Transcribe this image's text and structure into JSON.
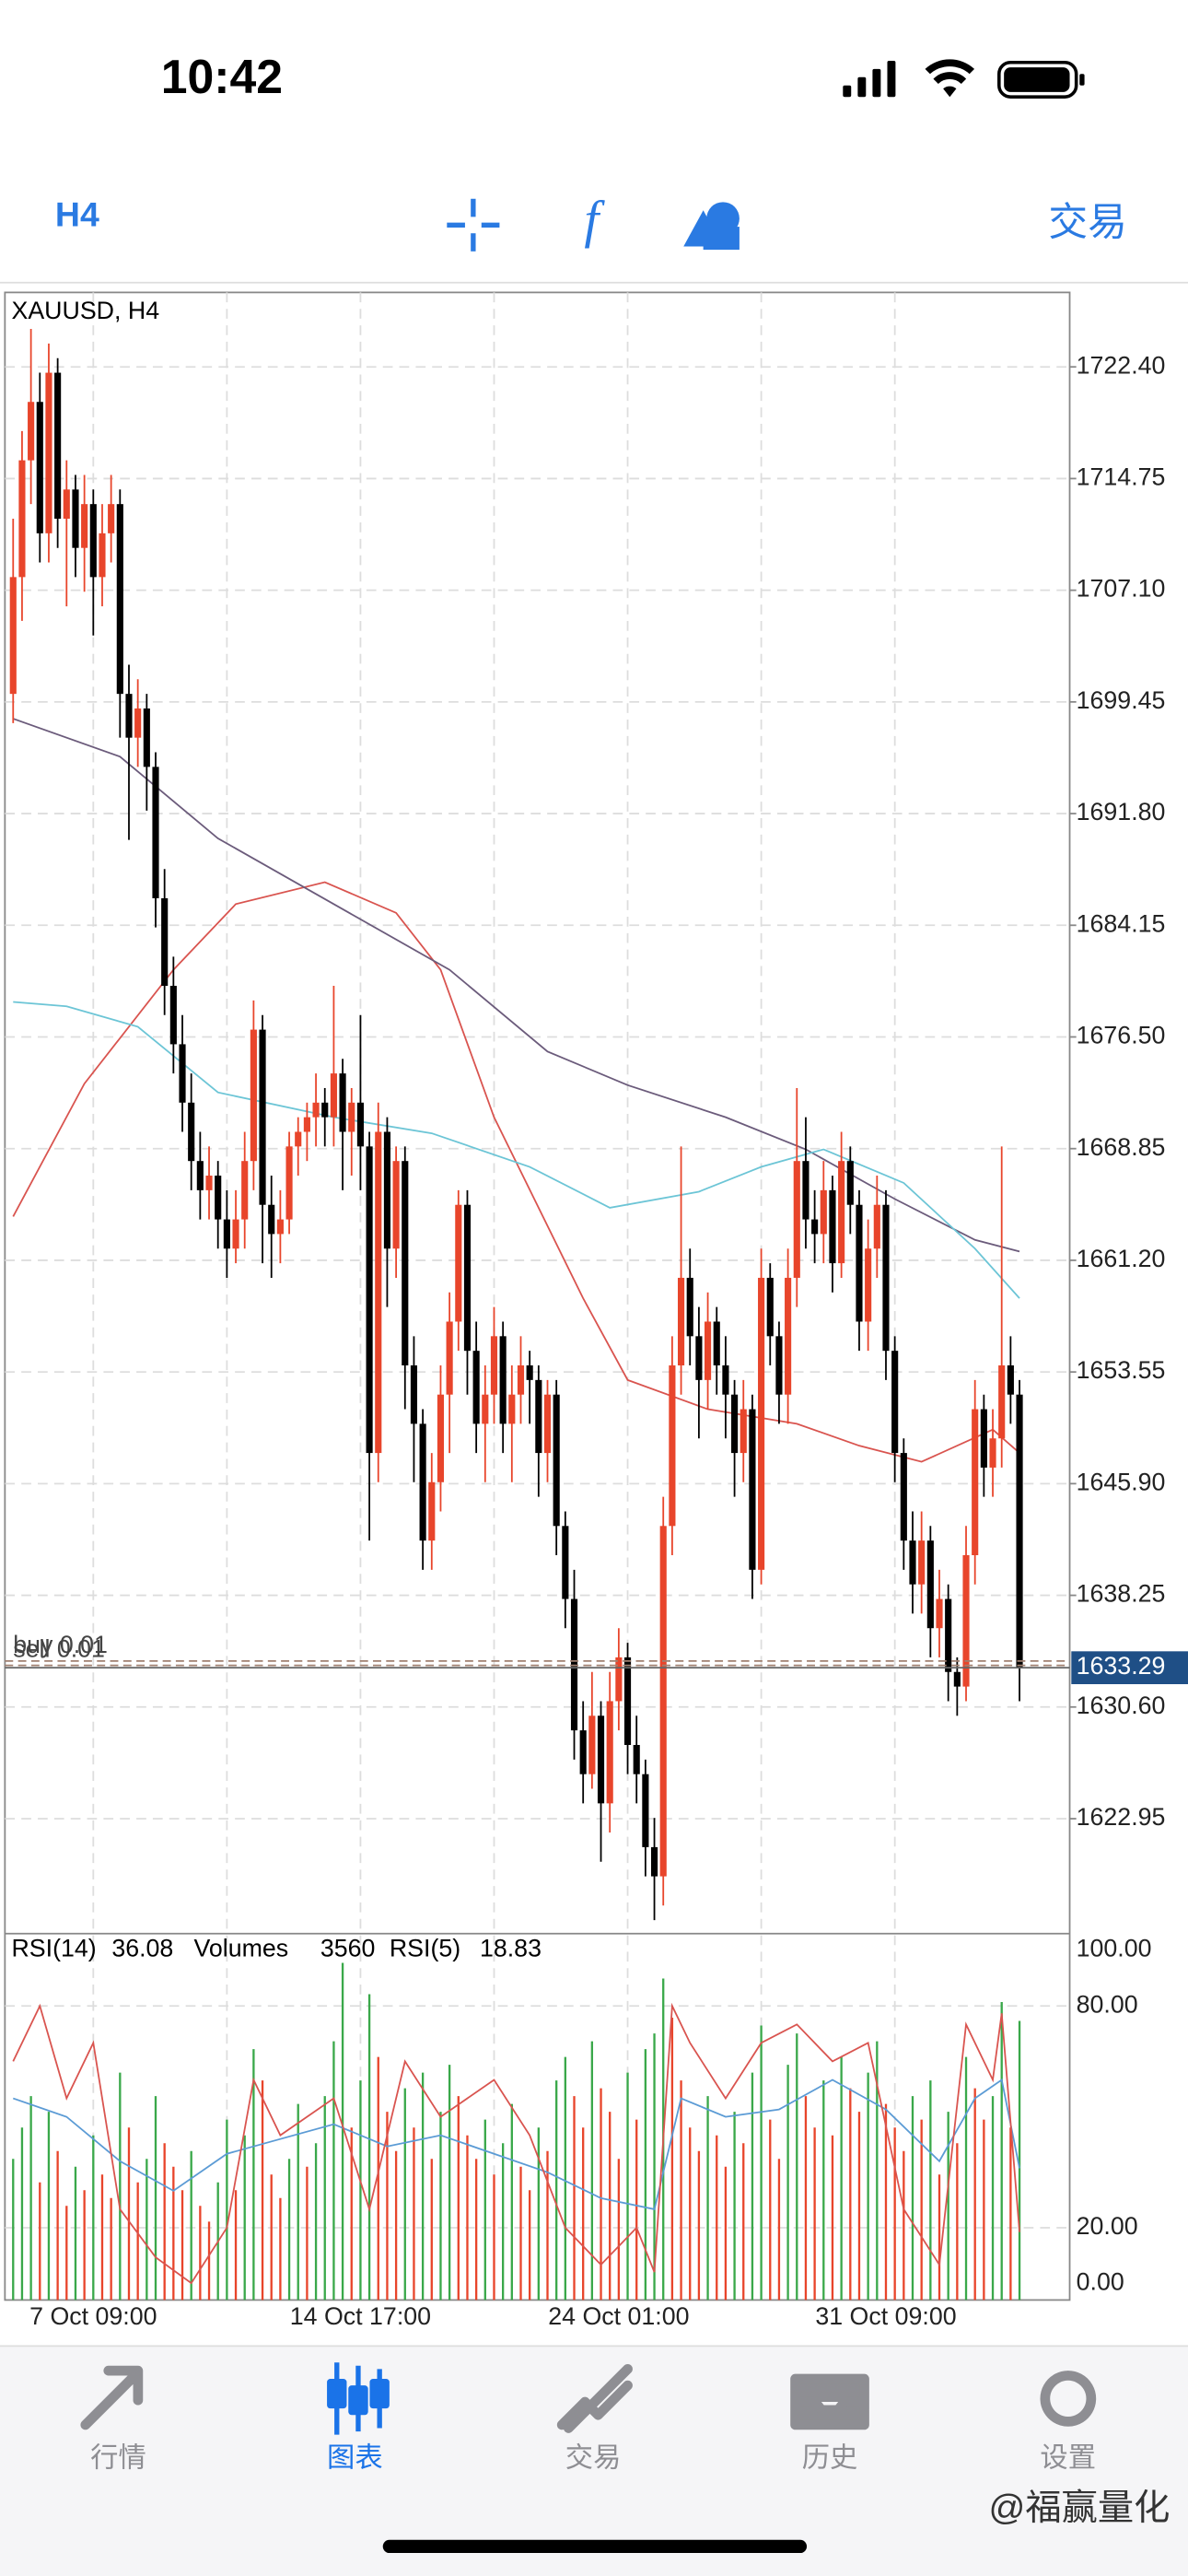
{
  "status_bar": {
    "time": "10:42"
  },
  "toolbar": {
    "timeframe": "H4",
    "trade": "交易"
  },
  "chart_data": {
    "type": "candlestick",
    "title": "XAUUSD, H4",
    "categories": [
      null,
      null,
      null,
      null,
      null,
      null,
      null,
      null,
      null,
      "7 Oct 09:00",
      null,
      null,
      null,
      null,
      null,
      null,
      null,
      null,
      null,
      null,
      null,
      null,
      null,
      null,
      null,
      null,
      null,
      null,
      null,
      null,
      null,
      null,
      null,
      null,
      null,
      null,
      null,
      null,
      null,
      "14 Oct 17:00",
      null,
      null,
      null,
      null,
      null,
      null,
      null,
      null,
      null,
      null,
      null,
      null,
      null,
      null,
      null,
      null,
      null,
      null,
      null,
      null,
      null,
      null,
      null,
      null,
      null,
      null,
      null,
      null,
      "24 Oct 01:00",
      null,
      null,
      null,
      null,
      null,
      null,
      null,
      null,
      null,
      null,
      null,
      null,
      null,
      null,
      null,
      null,
      null,
      null,
      null,
      null,
      null,
      null,
      null,
      null,
      null,
      null,
      null,
      null,
      null,
      "31 Oct 09:00",
      null,
      null,
      null,
      null,
      null,
      null,
      null,
      null,
      null,
      null,
      null,
      null,
      null,
      null,
      null
    ],
    "candles": [
      [
        1700,
        1712,
        1698,
        1708
      ],
      [
        1708,
        1718,
        1705,
        1716
      ],
      [
        1716,
        1725,
        1713,
        1720
      ],
      [
        1720,
        1722,
        1709,
        1711
      ],
      [
        1711,
        1724,
        1709,
        1722
      ],
      [
        1722,
        1723,
        1710,
        1712
      ],
      [
        1712,
        1716,
        1706,
        1714
      ],
      [
        1714,
        1715,
        1708,
        1710
      ],
      [
        1710,
        1715,
        1707,
        1713
      ],
      [
        1713,
        1714,
        1704,
        1708
      ],
      [
        1708,
        1713,
        1706,
        1711
      ],
      [
        1711,
        1715,
        1709,
        1713
      ],
      [
        1713,
        1714,
        1697,
        1700
      ],
      [
        1700,
        1702,
        1690,
        1697
      ],
      [
        1697,
        1701,
        1695,
        1699
      ],
      [
        1699,
        1700,
        1692,
        1695
      ],
      [
        1695,
        1696,
        1684,
        1686
      ],
      [
        1686,
        1688,
        1678,
        1680
      ],
      [
        1680,
        1682,
        1674,
        1676
      ],
      [
        1676,
        1678,
        1670,
        1672
      ],
      [
        1672,
        1674,
        1666,
        1668
      ],
      [
        1668,
        1670,
        1664,
        1666
      ],
      [
        1666,
        1669,
        1664,
        1667
      ],
      [
        1667,
        1668,
        1662,
        1664
      ],
      [
        1664,
        1666,
        1660,
        1662
      ],
      [
        1662,
        1666,
        1661,
        1664
      ],
      [
        1664,
        1670,
        1662,
        1668
      ],
      [
        1668,
        1679,
        1666,
        1677
      ],
      [
        1677,
        1678,
        1661,
        1665
      ],
      [
        1665,
        1667,
        1660,
        1663
      ],
      [
        1663,
        1666,
        1661,
        1664
      ],
      [
        1664,
        1670,
        1663,
        1669
      ],
      [
        1669,
        1671,
        1667,
        1670
      ],
      [
        1670,
        1672,
        1668,
        1671
      ],
      [
        1671,
        1674,
        1669,
        1672
      ],
      [
        1672,
        1673,
        1669,
        1671
      ],
      [
        1671,
        1680,
        1669,
        1674
      ],
      [
        1674,
        1675,
        1666,
        1670
      ],
      [
        1670,
        1673,
        1667,
        1672
      ],
      [
        1672,
        1678,
        1666,
        1669
      ],
      [
        1669,
        1670,
        1642,
        1648
      ],
      [
        1648,
        1672,
        1646,
        1670
      ],
      [
        1670,
        1671,
        1658,
        1662
      ],
      [
        1662,
        1669,
        1660,
        1668
      ],
      [
        1668,
        1669,
        1651,
        1654
      ],
      [
        1654,
        1656,
        1646,
        1650
      ],
      [
        1650,
        1651,
        1640,
        1642
      ],
      [
        1642,
        1648,
        1640,
        1646
      ],
      [
        1646,
        1654,
        1644,
        1652
      ],
      [
        1652,
        1659,
        1648,
        1657
      ],
      [
        1657,
        1666,
        1655,
        1665
      ],
      [
        1665,
        1666,
        1652,
        1655
      ],
      [
        1655,
        1657,
        1648,
        1650
      ],
      [
        1650,
        1654,
        1646,
        1652
      ],
      [
        1652,
        1658,
        1650,
        1656
      ],
      [
        1656,
        1657,
        1648,
        1650
      ],
      [
        1650,
        1654,
        1646,
        1652
      ],
      [
        1652,
        1656,
        1650,
        1654
      ],
      [
        1654,
        1655,
        1650,
        1653
      ],
      [
        1653,
        1654,
        1645,
        1648
      ],
      [
        1648,
        1653,
        1646,
        1652
      ],
      [
        1652,
        1653,
        1641,
        1643
      ],
      [
        1643,
        1644,
        1636,
        1638
      ],
      [
        1638,
        1640,
        1627,
        1629
      ],
      [
        1629,
        1631,
        1624,
        1626
      ],
      [
        1626,
        1633,
        1625,
        1630
      ],
      [
        1630,
        1631,
        1620,
        1624
      ],
      [
        1624,
        1633,
        1622,
        1631
      ],
      [
        1631,
        1636,
        1629,
        1634
      ],
      [
        1634,
        1635,
        1626,
        1628
      ],
      [
        1628,
        1630,
        1624,
        1626
      ],
      [
        1626,
        1627,
        1619,
        1621
      ],
      [
        1621,
        1623,
        1616,
        1619
      ],
      [
        1619,
        1645,
        1617,
        1643
      ],
      [
        1643,
        1656,
        1641,
        1654
      ],
      [
        1654,
        1669,
        1652,
        1660
      ],
      [
        1660,
        1662,
        1654,
        1656
      ],
      [
        1656,
        1658,
        1649,
        1653
      ],
      [
        1653,
        1659,
        1651,
        1657
      ],
      [
        1657,
        1658,
        1652,
        1654
      ],
      [
        1654,
        1656,
        1649,
        1652
      ],
      [
        1652,
        1653,
        1645,
        1648
      ],
      [
        1648,
        1653,
        1646,
        1651
      ],
      [
        1651,
        1652,
        1638,
        1640
      ],
      [
        1640,
        1662,
        1639,
        1660
      ],
      [
        1660,
        1661,
        1654,
        1656
      ],
      [
        1656,
        1657,
        1650,
        1652
      ],
      [
        1652,
        1662,
        1650,
        1660
      ],
      [
        1660,
        1673,
        1658,
        1668
      ],
      [
        1668,
        1671,
        1662,
        1664
      ],
      [
        1664,
        1666,
        1661,
        1663
      ],
      [
        1663,
        1668,
        1661,
        1666
      ],
      [
        1666,
        1667,
        1659,
        1661
      ],
      [
        1661,
        1670,
        1660,
        1668
      ],
      [
        1668,
        1669,
        1663,
        1665
      ],
      [
        1665,
        1666,
        1655,
        1657
      ],
      [
        1657,
        1664,
        1655,
        1662
      ],
      [
        1662,
        1667,
        1660,
        1665
      ],
      [
        1665,
        1666,
        1653,
        1655
      ],
      [
        1655,
        1656,
        1646,
        1648
      ],
      [
        1648,
        1649,
        1640,
        1642
      ],
      [
        1642,
        1644,
        1637,
        1639
      ],
      [
        1639,
        1644,
        1637,
        1642
      ],
      [
        1642,
        1643,
        1634,
        1636
      ],
      [
        1636,
        1640,
        1634,
        1638
      ],
      [
        1638,
        1639,
        1631,
        1633
      ],
      [
        1633,
        1634,
        1630,
        1632
      ],
      [
        1632,
        1643,
        1631,
        1641
      ],
      [
        1641,
        1653,
        1639,
        1651
      ],
      [
        1651,
        1652,
        1645,
        1647
      ],
      [
        1647,
        1651,
        1645,
        1649
      ],
      [
        1649,
        1669,
        1647,
        1654
      ],
      [
        1654,
        1656,
        1650,
        1652
      ],
      [
        1652,
        1653,
        1631,
        1633.29
      ]
    ],
    "up_color": "#e8452b",
    "down_color": "#000000",
    "ylim": [
      1615.3,
      1727.5
    ],
    "yticks": [
      {
        "value": 1722.4,
        "label": "1722.40"
      },
      1714.75,
      {
        "value": 1707.1,
        "label": "1707.10"
      },
      1699.45,
      {
        "value": 1691.8,
        "label": "1691.80"
      },
      1684.15,
      {
        "value": 1676.5,
        "label": "1676.50"
      },
      1668.85,
      {
        "value": 1661.2,
        "label": "1661.20"
      },
      1653.55,
      {
        "value": 1645.9,
        "label": "1645.90"
      },
      1638.25,
      {
        "value": 1630.6,
        "label": "1630.60"
      },
      1622.95
    ],
    "grid": true,
    "moving_averages": [
      {
        "color": "#d9544f",
        "x": [
          0,
          8,
          18,
          25,
          35,
          43,
          48,
          54,
          64,
          69,
          78,
          88,
          95,
          102,
          110,
          113
        ],
        "values": [
          1664.2,
          1673.3,
          1681.1,
          1685.6,
          1687.1,
          1685,
          1681.1,
          1671,
          1658.6,
          1653,
          1651,
          1650,
          1648.5,
          1647.4,
          1649.6,
          1648
        ]
      },
      {
        "color": "#6b5b7b",
        "x": [
          0,
          12,
          23,
          36,
          49,
          60,
          69,
          80,
          89,
          99,
          108,
          113
        ],
        "values": [
          1698.3,
          1695.7,
          1690.1,
          1685.6,
          1681.1,
          1675.5,
          1673.2,
          1671,
          1668.8,
          1665.4,
          1662.6,
          1661.8
        ]
      },
      {
        "color": "#6cc5d6",
        "x": [
          0,
          6,
          14,
          23,
          36,
          47,
          58,
          67,
          77,
          84,
          91,
          100,
          108,
          113
        ],
        "values": [
          1678.9,
          1678.6,
          1677.2,
          1672.7,
          1671,
          1669.9,
          1667.6,
          1664.8,
          1665.9,
          1667.6,
          1668.8,
          1666.5,
          1662,
          1658.6
        ]
      }
    ],
    "current_price_color": "#1f4f86",
    "orders": [
      {
        "label": "buy 0.01",
        "price": 1633.75
      },
      {
        "label": "sell 0.01",
        "price": 1633.45
      }
    ],
    "indicator": {
      "ylim": [
        0,
        100
      ],
      "yticks": [
        {
          "value": 100,
          "label": "100.00"
        },
        {
          "value": 80,
          "label": "80.00"
        },
        {
          "value": 20,
          "label": "20.00"
        },
        {
          "value": 0,
          "label": "0.00"
        }
      ],
      "rsi14": {
        "name": "RSI(14)",
        "color": "#5b9bd5",
        "x": [
          0,
          6,
          12,
          18,
          24,
          30,
          36,
          42,
          48,
          54,
          60,
          66,
          72,
          75,
          80,
          86,
          92,
          98,
          104,
          108,
          111,
          113
        ],
        "values": [
          55,
          50,
          38,
          30,
          40,
          44,
          48,
          42,
          45,
          40,
          35,
          28,
          25,
          55,
          50,
          52,
          60,
          52,
          38,
          55,
          60,
          36.08
        ]
      },
      "rsi5": {
        "name": "RSI(5)",
        "color": "#d9544f",
        "x": [
          0,
          3,
          6,
          9,
          12,
          16,
          20,
          24,
          27,
          30,
          36,
          40,
          44,
          48,
          54,
          58,
          62,
          66,
          70,
          72,
          74,
          76,
          80,
          84,
          88,
          92,
          96,
          100,
          104,
          107,
          110,
          111,
          113
        ],
        "values": [
          65,
          80,
          55,
          70,
          25,
          12,
          5,
          20,
          60,
          45,
          55,
          25,
          65,
          50,
          60,
          45,
          20,
          10,
          20,
          8,
          80,
          70,
          55,
          70,
          75,
          65,
          70,
          25,
          10,
          75,
          60,
          78,
          18.83
        ]
      },
      "volumes": {
        "name": "Volumes",
        "up_color": "#3aa84a",
        "down_color": "#e8452b",
        "lim": [
          0,
          4400
        ],
        "values": [
          1800,
          2200,
          2600,
          1500,
          2400,
          1900,
          1200,
          1700,
          1400,
          2100,
          1600,
          1300,
          2900,
          2200,
          1500,
          1800,
          2600,
          2000,
          1700,
          1400,
          1900,
          1200,
          1000,
          1500,
          2300,
          1400,
          2100,
          3200,
          2800,
          1600,
          1300,
          1800,
          2500,
          1700,
          2000,
          2600,
          3300,
          4300,
          2200,
          2800,
          3900,
          3100,
          2400,
          1900,
          2700,
          2200,
          2900,
          1800,
          2400,
          3000,
          2600,
          2100,
          1800,
          2300,
          1600,
          2000,
          2500,
          1700,
          1400,
          2200,
          1900,
          2800,
          3100,
          2600,
          2200,
          3300,
          2700,
          2400,
          1800,
          2900,
          2300,
          3200,
          3400,
          4100,
          3600,
          2800,
          2200,
          1900,
          2600,
          2100,
          1700,
          2400,
          2000,
          2900,
          3500,
          2300,
          1800,
          3000,
          3400,
          2600,
          2200,
          2800,
          2100,
          3100,
          2700,
          2400,
          2900,
          3300,
          2500,
          2200,
          1900,
          2600,
          2300,
          2800,
          1600,
          2400,
          2000,
          3100,
          2700,
          2300,
          2600,
          3800,
          2200,
          3560
        ]
      }
    }
  },
  "tabs": [
    {
      "label": "行情",
      "active": false
    },
    {
      "label": "图表",
      "active": true
    },
    {
      "label": "交易",
      "active": false
    },
    {
      "label": "历史",
      "active": false
    },
    {
      "label": "设置",
      "active": false
    }
  ],
  "watermark": "@福赢量化"
}
